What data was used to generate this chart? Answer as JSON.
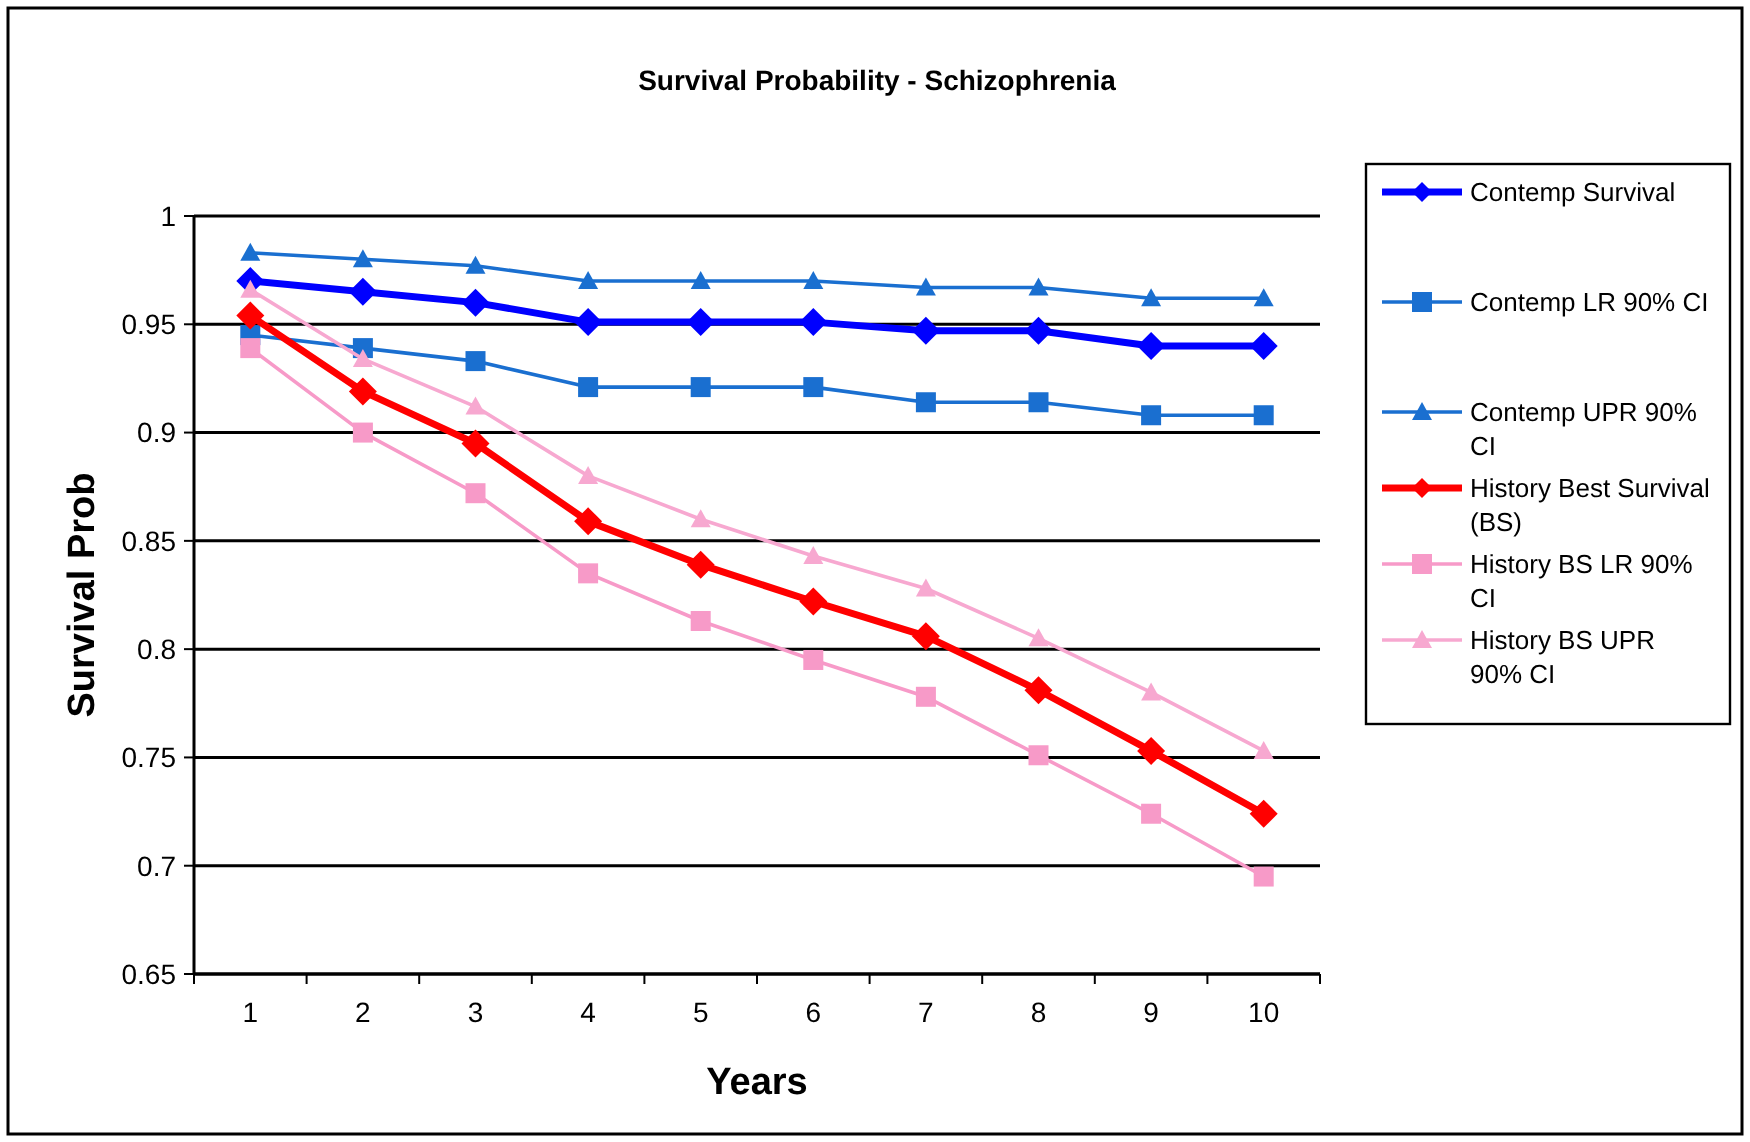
{
  "chart_data": {
    "type": "line",
    "title": "Survival Probability - Schizophrenia",
    "xlabel": "Years",
    "ylabel": "Survival Prob",
    "categories": [
      "1",
      "2",
      "3",
      "4",
      "5",
      "6",
      "7",
      "8",
      "9",
      "10"
    ],
    "ylim": [
      0.65,
      1
    ],
    "yticks": [
      {
        "value": 0.65,
        "label": "0.65"
      },
      {
        "value": 0.7,
        "label": "0.7"
      },
      {
        "value": 0.75,
        "label": "0.75"
      },
      {
        "value": 0.8,
        "label": "0.8"
      },
      {
        "value": 0.85,
        "label": "0.85"
      },
      {
        "value": 0.9,
        "label": "0.9"
      },
      {
        "value": 0.95,
        "label": "0.95"
      },
      {
        "value": 1,
        "label": "1"
      }
    ],
    "grid": "y",
    "legend": "right",
    "series": [
      {
        "name": "Contemp Survival",
        "color": "#0000ff",
        "marker": "diamond",
        "values": [
          0.97,
          0.965,
          0.96,
          0.951,
          0.951,
          0.951,
          0.947,
          0.947,
          0.94,
          0.94
        ]
      },
      {
        "name": "Contemp LR 90% CI",
        "color": "#1a6fd0",
        "marker": "square",
        "values": [
          0.945,
          0.939,
          0.933,
          0.921,
          0.921,
          0.921,
          0.914,
          0.914,
          0.908,
          0.908
        ]
      },
      {
        "name": "Contemp UPR 90% CI",
        "color": "#1a6fd0",
        "marker": "triangle",
        "values": [
          0.983,
          0.98,
          0.977,
          0.97,
          0.97,
          0.97,
          0.967,
          0.967,
          0.962,
          0.962
        ]
      },
      {
        "name": "History Best Survival (BS)",
        "color": "#ff0000",
        "marker": "diamond",
        "values": [
          0.954,
          0.919,
          0.895,
          0.859,
          0.839,
          0.822,
          0.806,
          0.781,
          0.753,
          0.724
        ]
      },
      {
        "name": "History BS LR 90% CI",
        "color": "#f79ac8",
        "marker": "square",
        "values": [
          0.939,
          0.9,
          0.872,
          0.835,
          0.813,
          0.795,
          0.778,
          0.751,
          0.724,
          0.695
        ]
      },
      {
        "name": "History BS UPR 90% CI",
        "color": "#f7a8d0",
        "marker": "triangle",
        "values": [
          0.966,
          0.934,
          0.912,
          0.88,
          0.86,
          0.843,
          0.828,
          0.805,
          0.78,
          0.753
        ]
      }
    ]
  }
}
